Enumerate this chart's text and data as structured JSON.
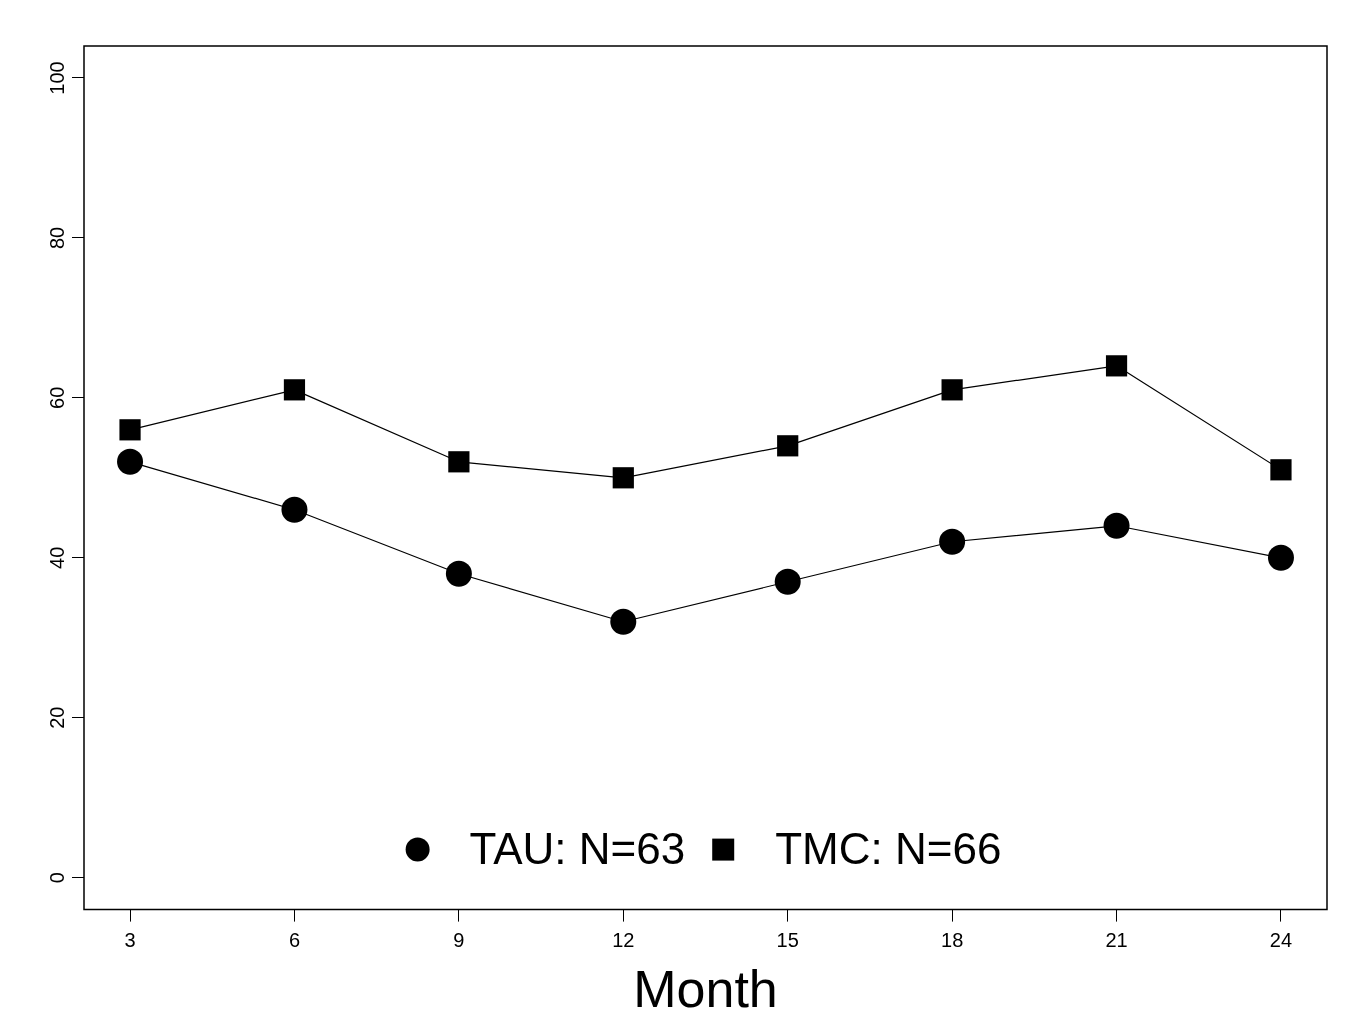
{
  "chart_data": {
    "type": "line",
    "xlabel": "Month",
    "x": [
      3,
      6,
      9,
      12,
      15,
      18,
      21,
      24
    ],
    "series": [
      {
        "name": "TAU: N=63",
        "color": "#000000",
        "marker": "circle",
        "values": [
          52,
          46,
          38,
          32,
          37,
          42,
          44,
          40
        ]
      },
      {
        "name": "TMC: N=66",
        "color": "#000000",
        "marker": "square",
        "values": [
          56,
          61,
          52,
          50,
          54,
          61,
          64,
          51
        ]
      }
    ],
    "xlim": [
      2.16,
      24.84
    ],
    "xticks": [
      3,
      6,
      9,
      12,
      15,
      18,
      21,
      24
    ],
    "ylim": [
      -4,
      104
    ],
    "yticks": [
      0,
      20,
      40,
      60,
      80,
      100
    ],
    "grid": false,
    "legend": "bottom",
    "line_style": "solid"
  }
}
